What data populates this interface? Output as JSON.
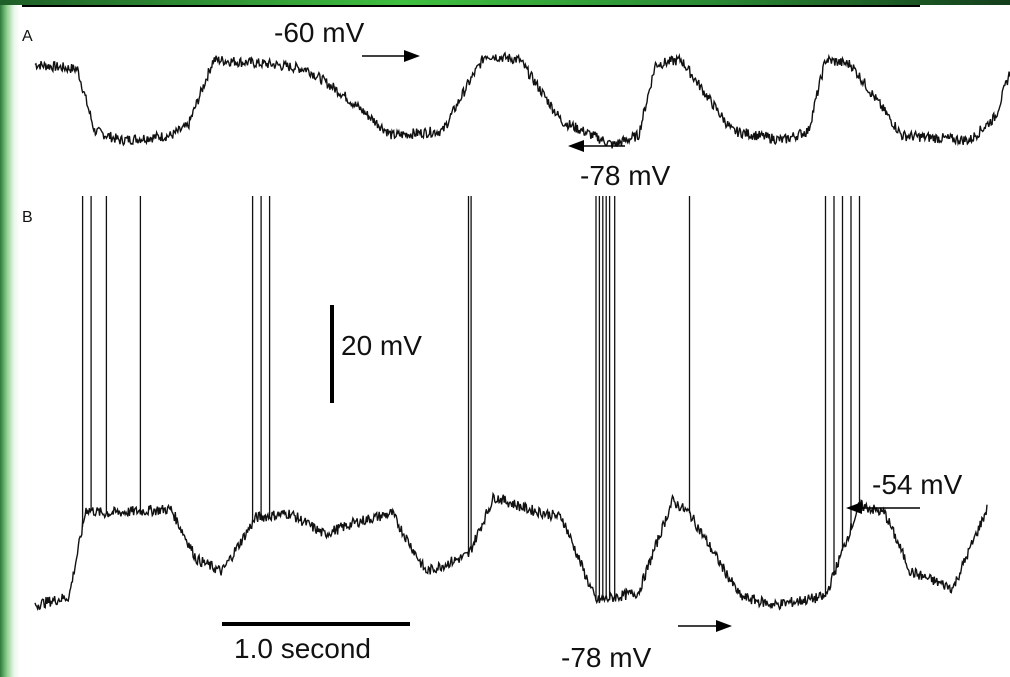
{
  "chart_data": [
    {
      "type": "line",
      "panel_label": "A",
      "annotations": [
        {
          "text": "-60 mV",
          "arrow": "right"
        },
        {
          "text": "-78 mV",
          "arrow": "left"
        }
      ],
      "series": [
        {
          "t": [
            0.0,
            0.25,
            0.35,
            0.5,
            0.8,
            0.9,
            1.05,
            1.4,
            1.6,
            1.8,
            2.1,
            2.4,
            2.55,
            2.65,
            2.85,
            3.1,
            3.4,
            3.55,
            3.65,
            3.8,
            4.1,
            4.4,
            4.55,
            4.65,
            4.8,
            5.1,
            5.5,
            5.65,
            5.75,
            5.95
          ],
          "mV": [
            -62,
            -63,
            -76,
            -78,
            -77,
            -75,
            -61,
            -62,
            -63,
            -68,
            -77,
            -76,
            -66,
            -60,
            -61,
            -74,
            -79,
            -77,
            -62,
            -61,
            -76,
            -78,
            -76,
            -61,
            -62,
            -77,
            -78,
            -73,
            -62,
            -63
          ]
        }
      ]
    },
    {
      "type": "line",
      "panel_label": "B",
      "scale_bar_voltage": "20 mV",
      "scale_bar_time": "1.0 second",
      "annotations": [
        {
          "text": "-54 mV",
          "arrow": "left"
        },
        {
          "text": "-78 mV",
          "arrow": "right"
        }
      ],
      "series": [
        {
          "t": [
            0.0,
            0.2,
            0.3,
            0.4,
            0.8,
            0.95,
            1.1,
            1.3,
            1.5,
            1.7,
            1.9,
            2.1,
            2.3,
            2.55,
            2.7,
            2.9,
            3.1,
            3.3,
            3.55,
            3.75,
            3.85,
            4.15,
            4.35,
            4.65,
            4.85,
            5.0,
            5.15,
            5.4,
            5.6
          ],
          "mV": [
            -78,
            -76,
            -55,
            -56,
            -55,
            -67,
            -70,
            -57,
            -56,
            -61,
            -58,
            -56,
            -70,
            -66,
            -52,
            -55,
            -57,
            -77,
            -75,
            -53,
            -56,
            -76,
            -78,
            -76,
            -54,
            -56,
            -70,
            -74,
            -55
          ]
        }
      ],
      "spike_times_s": [
        0.28,
        0.33,
        0.42,
        0.62,
        1.28,
        1.33,
        1.38,
        2.55,
        2.565,
        3.3,
        3.32,
        3.34,
        3.36,
        3.38,
        3.41,
        3.85,
        4.65,
        4.7,
        4.75,
        4.8,
        4.85
      ]
    }
  ]
}
